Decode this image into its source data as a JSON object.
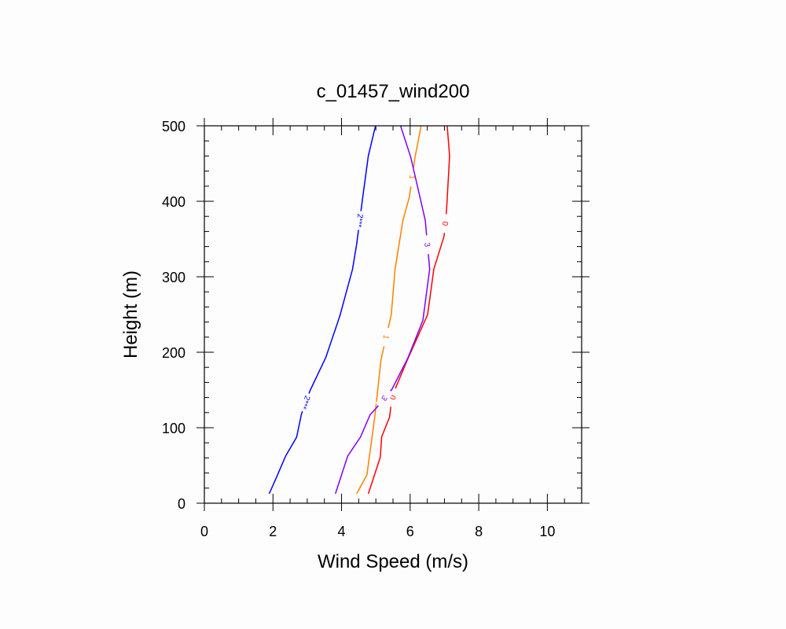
{
  "chart_data": {
    "type": "line",
    "title": "c_01457_wind200",
    "xlabel": "Wind Speed (m/s)",
    "ylabel": "Height (m)",
    "xlim": [
      0,
      11
    ],
    "ylim": [
      0,
      500
    ],
    "xticks": [
      0,
      2,
      4,
      6,
      8,
      10
    ],
    "yticks": [
      0,
      100,
      200,
      300,
      400,
      500
    ],
    "grid": false,
    "series": [
      {
        "label": "2***",
        "color": "#0000ff",
        "points": [
          [
            1.89,
            12.5
          ],
          [
            2.11,
            35
          ],
          [
            2.37,
            62.5
          ],
          [
            2.69,
            87.5
          ],
          [
            2.83,
            118
          ],
          [
            3.08,
            149
          ],
          [
            3.54,
            193
          ],
          [
            3.95,
            248
          ],
          [
            4.32,
            310
          ],
          [
            4.44,
            343
          ],
          [
            4.62,
            406
          ],
          [
            4.78,
            460
          ],
          [
            4.99,
            500
          ]
        ]
      },
      {
        "label": "1",
        "color": "#ff8000",
        "points": [
          [
            4.44,
            12.5
          ],
          [
            4.74,
            37.5
          ],
          [
            4.97,
            115
          ],
          [
            5.15,
            190
          ],
          [
            5.45,
            250
          ],
          [
            5.56,
            310
          ],
          [
            5.79,
            375
          ],
          [
            5.98,
            406
          ],
          [
            6.14,
            458
          ],
          [
            6.32,
            500
          ]
        ]
      },
      {
        "label": "0",
        "color": "#ff0000",
        "points": [
          [
            4.78,
            12.5
          ],
          [
            5.13,
            61
          ],
          [
            5.17,
            88
          ],
          [
            5.4,
            114
          ],
          [
            5.44,
            129
          ],
          [
            5.56,
            151
          ],
          [
            5.93,
            191
          ],
          [
            6.51,
            250
          ],
          [
            6.69,
            310
          ],
          [
            6.99,
            354
          ],
          [
            7.06,
            387
          ],
          [
            7.15,
            460
          ],
          [
            7.08,
            500
          ]
        ]
      },
      {
        "label": "3",
        "color": "#8000ff",
        "points": [
          [
            3.82,
            12.5
          ],
          [
            4.18,
            62.5
          ],
          [
            4.55,
            87.5
          ],
          [
            4.83,
            117
          ],
          [
            5.03,
            127
          ],
          [
            5.47,
            151
          ],
          [
            5.93,
            192
          ],
          [
            6.37,
            242
          ],
          [
            6.57,
            310
          ],
          [
            6.44,
            375
          ],
          [
            6.02,
            458
          ],
          [
            5.72,
            500
          ]
        ]
      }
    ]
  }
}
